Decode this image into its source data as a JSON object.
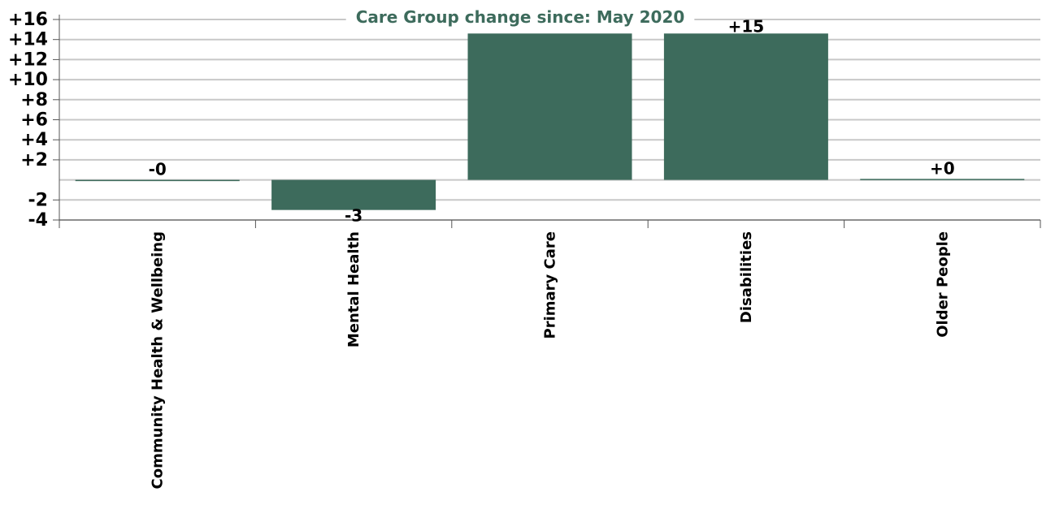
{
  "chart_data": {
    "type": "bar",
    "title": "Care Group change since: May 2020",
    "categories": [
      "Community Health & Wellbeing",
      "Mental Health",
      "Primary Care",
      "Disabilities",
      "Older People"
    ],
    "values": [
      -0.1,
      -3,
      14.6,
      14.6,
      0.1
    ],
    "data_labels": [
      "-0",
      "-3",
      "",
      "+15",
      "+0"
    ],
    "ylim": [
      -4,
      16
    ],
    "yticks": [
      -4,
      -2,
      2,
      4,
      6,
      8,
      10,
      12,
      14,
      16
    ],
    "ytick_labels": [
      "-4",
      "-2",
      "+2",
      "+4",
      "+6",
      "+8",
      "+10",
      "+12",
      "+14",
      "+16"
    ],
    "grid": true,
    "bar_color": "#3d6b5c",
    "title_color": "#3d6b5c"
  }
}
